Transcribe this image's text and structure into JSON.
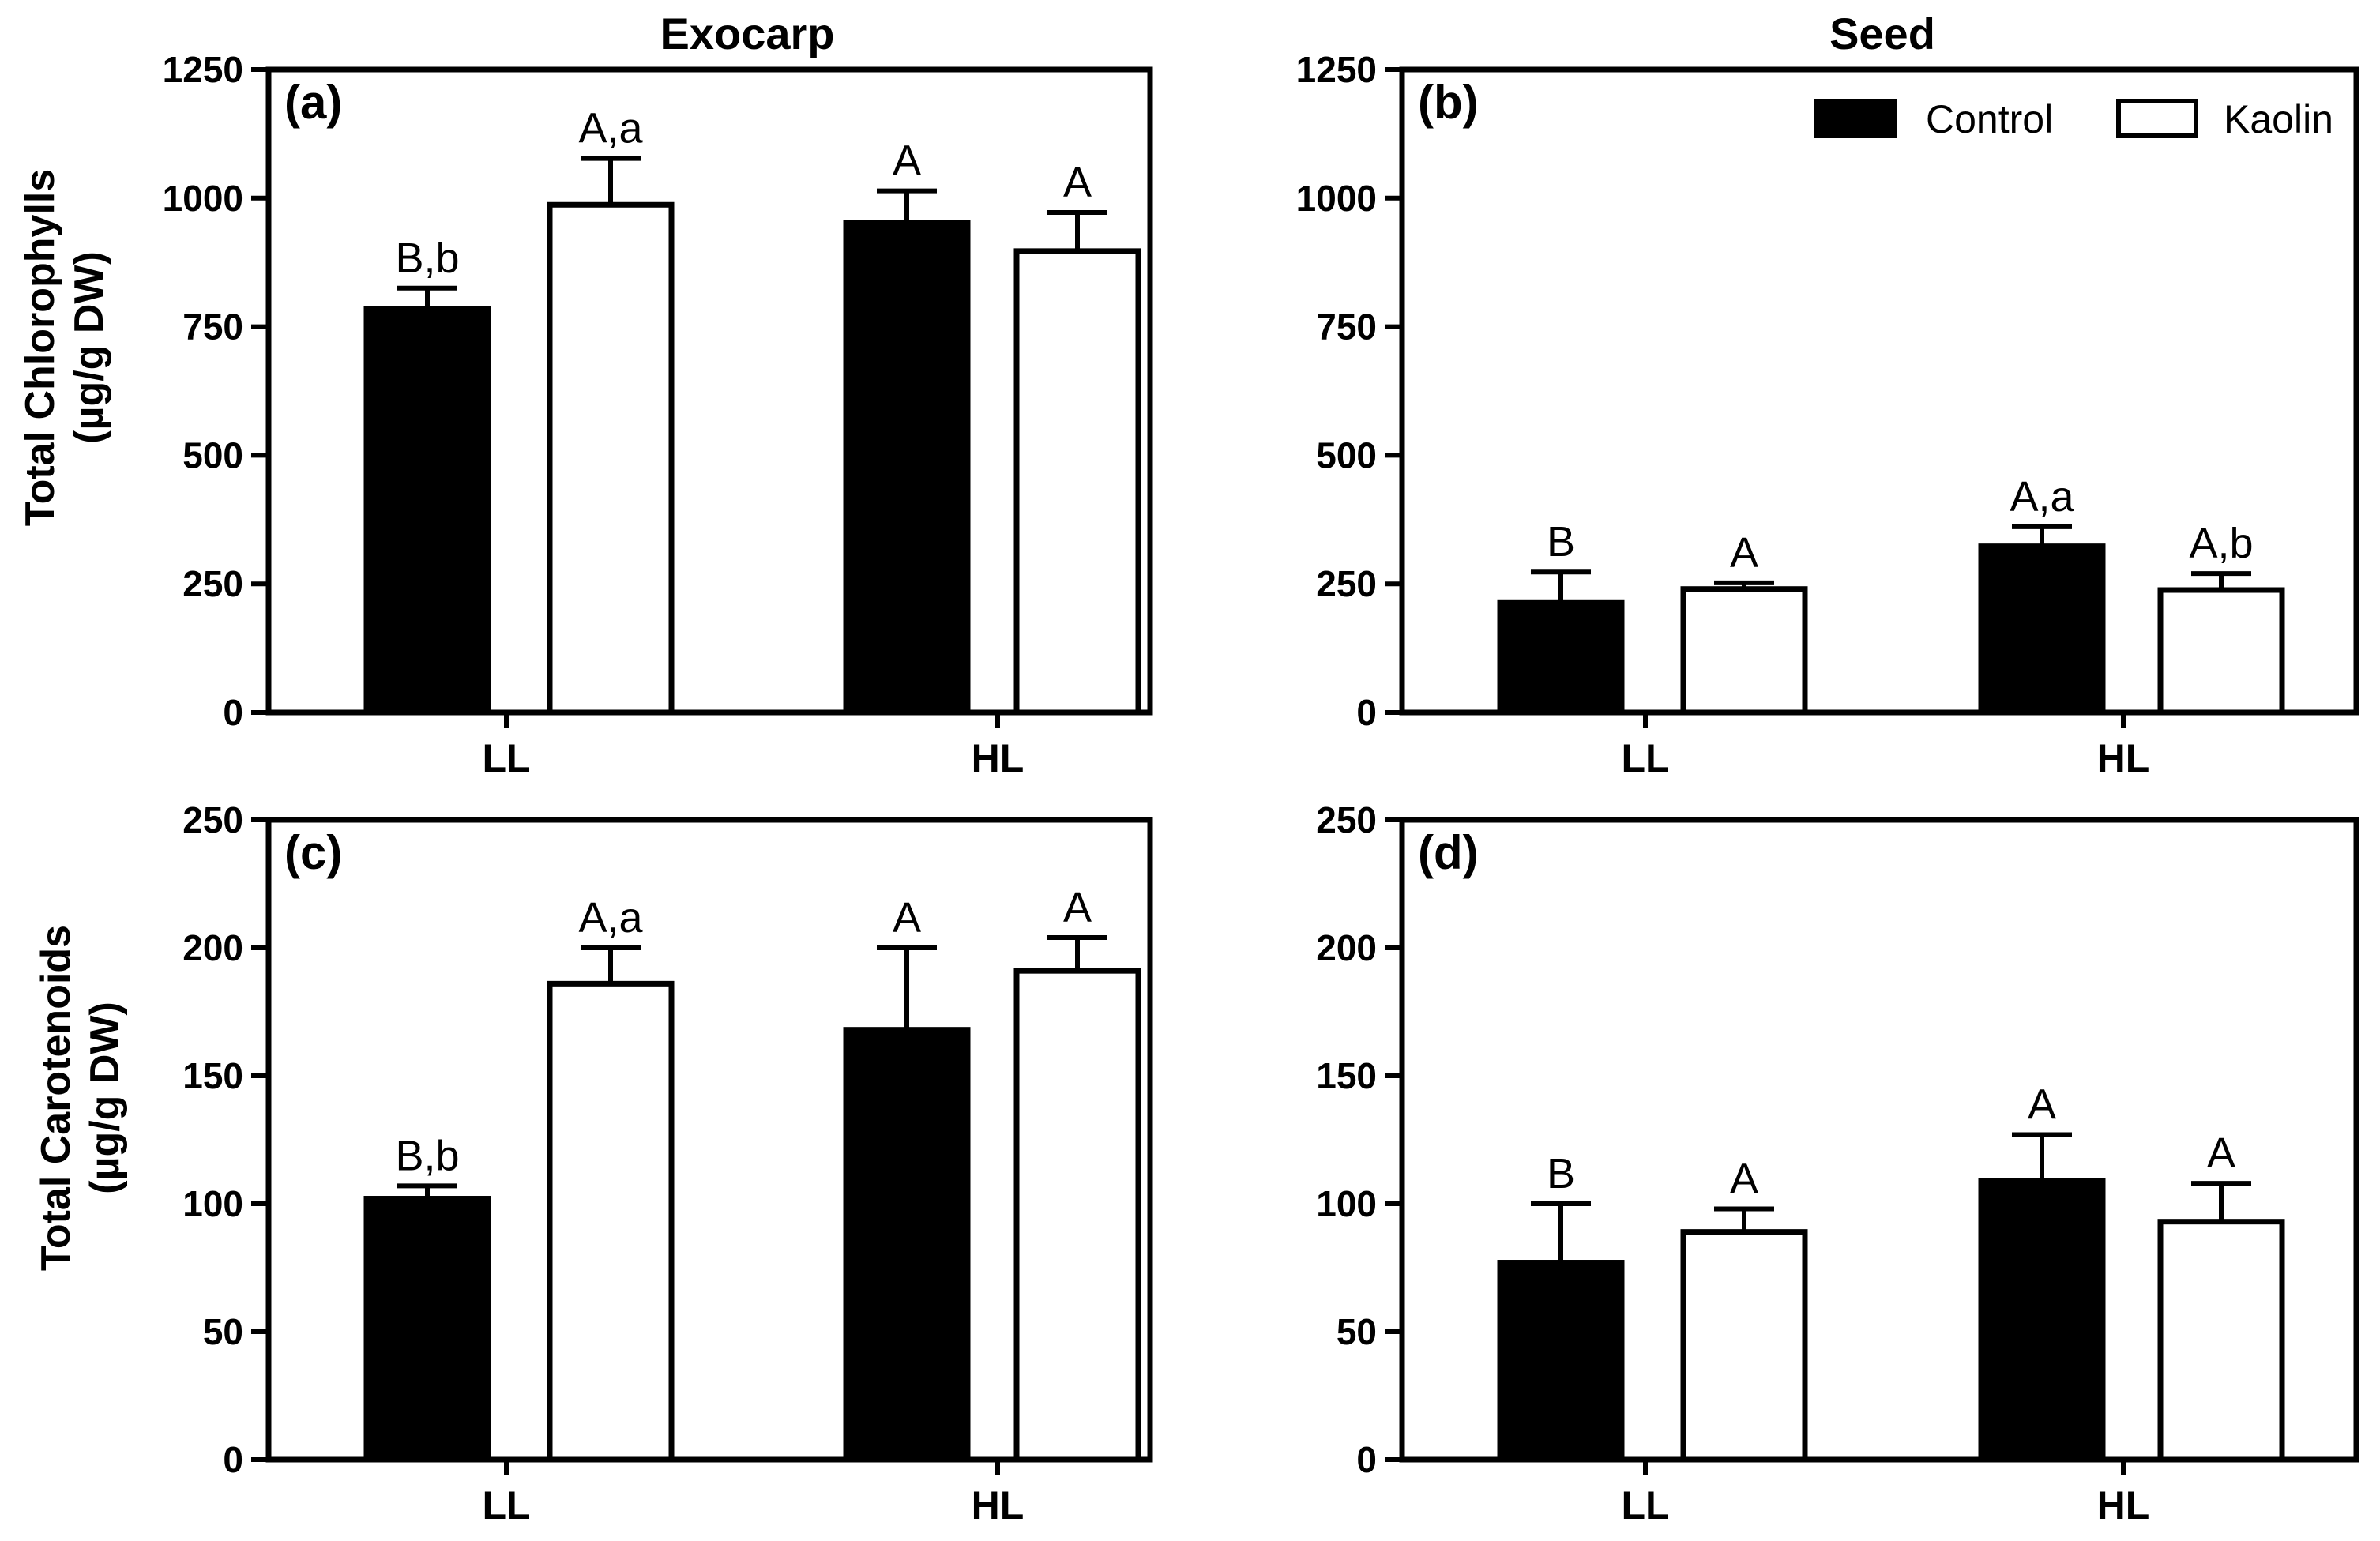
{
  "figure": {
    "col_titles": [
      "Exocarp",
      "Seed"
    ],
    "row_ylabels": [
      [
        "Total Chlorophylls",
        "(µg/g DW)"
      ],
      [
        "Total Carotenoids",
        "(µg/g DW)"
      ]
    ],
    "legend": [
      {
        "label": "Control",
        "color": "#000000"
      },
      {
        "label": "Kaolin",
        "color": "#ffffff"
      }
    ]
  },
  "chart_data": [
    {
      "panel": "(a)",
      "type": "bar",
      "title": "Exocarp",
      "ylabel": "Total Chlorophylls (µg/g DW)",
      "categories": [
        "LL",
        "HL"
      ],
      "ylim": [
        0,
        1250
      ],
      "yticks": [
        0,
        250,
        500,
        750,
        1000,
        1250
      ],
      "series": [
        {
          "name": "Control",
          "values": [
            785,
            952
          ],
          "errors": [
            40,
            62
          ],
          "labels": [
            "B,b",
            "A"
          ]
        },
        {
          "name": "Kaolin",
          "values": [
            987,
            897
          ],
          "errors": [
            90,
            75
          ],
          "labels": [
            "A,a",
            "A"
          ]
        }
      ]
    },
    {
      "panel": "(b)",
      "type": "bar",
      "title": "Seed",
      "ylabel": "Total Chlorophylls (µg/g DW)",
      "categories": [
        "LL",
        "HL"
      ],
      "ylim": [
        0,
        1250
      ],
      "yticks": [
        0,
        250,
        500,
        750,
        1000,
        1250
      ],
      "series": [
        {
          "name": "Control",
          "values": [
            213,
            323
          ],
          "errors": [
            60,
            38
          ],
          "labels": [
            "B",
            "A,a"
          ]
        },
        {
          "name": "Kaolin",
          "values": [
            240,
            238
          ],
          "errors": [
            12,
            32
          ],
          "labels": [
            "A",
            "A,b"
          ]
        }
      ]
    },
    {
      "panel": "(c)",
      "type": "bar",
      "title": "Exocarp",
      "ylabel": "Total Carotenoids (µg/g DW)",
      "categories": [
        "LL",
        "HL"
      ],
      "ylim": [
        0,
        250
      ],
      "yticks": [
        0,
        50,
        100,
        150,
        200,
        250
      ],
      "series": [
        {
          "name": "Control",
          "values": [
            102,
            168
          ],
          "errors": [
            5,
            32
          ],
          "labels": [
            "B,b",
            "A"
          ]
        },
        {
          "name": "Kaolin",
          "values": [
            186,
            191
          ],
          "errors": [
            14,
            13
          ],
          "labels": [
            "A,a",
            "A"
          ]
        }
      ]
    },
    {
      "panel": "(d)",
      "type": "bar",
      "title": "Seed",
      "ylabel": "Total Carotenoids (µg/g DW)",
      "categories": [
        "LL",
        "HL"
      ],
      "ylim": [
        0,
        250
      ],
      "yticks": [
        0,
        50,
        100,
        150,
        200,
        250
      ],
      "series": [
        {
          "name": "Control",
          "values": [
            77,
            109
          ],
          "errors": [
            23,
            18
          ],
          "labels": [
            "B",
            "A"
          ]
        },
        {
          "name": "Kaolin",
          "values": [
            89,
            93
          ],
          "errors": [
            9,
            15
          ],
          "labels": [
            "A",
            "A"
          ]
        }
      ]
    }
  ]
}
